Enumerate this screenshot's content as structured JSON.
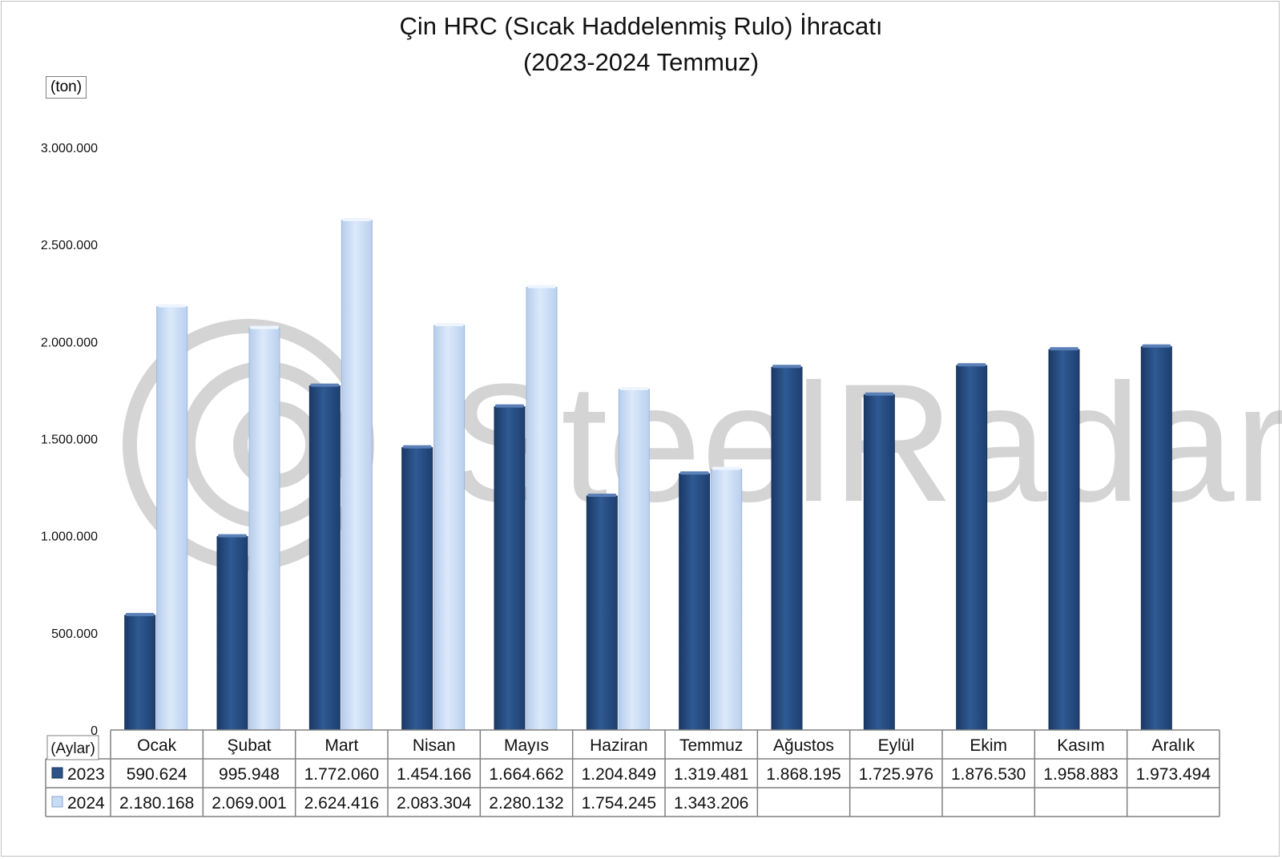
{
  "title_line1": "Çin HRC (Sıcak Haddelenmiş Rulo) İhracatı",
  "title_line2": "(2023-2024 Temmuz)",
  "unit_label": "(ton)",
  "watermark": "SteelRadar",
  "colors": {
    "series_2023": "#2d5288",
    "series_2024": "#c9dcf5"
  },
  "chart_data": {
    "type": "bar",
    "title": "Çin HRC (Sıcak Haddelenmiş Rulo) İhracatı (2023-2024 Temmuz)",
    "xlabel": "(Aylar)",
    "ylabel": "(ton)",
    "ylim": [
      0,
      3000000
    ],
    "yticks": [
      0,
      500000,
      1000000,
      1500000,
      2000000,
      2500000,
      3000000
    ],
    "ytick_labels": [
      "0",
      "500.000",
      "1.000.000",
      "1.500.000",
      "2.000.000",
      "2.500.000",
      "3.000.000"
    ],
    "grid": false,
    "legend_placement": "data-table",
    "categories": [
      "Ocak",
      "Şubat",
      "Mart",
      "Nisan",
      "Mayıs",
      "Haziran",
      "Temmuz",
      "Ağustos",
      "Eylül",
      "Ekim",
      "Kasım",
      "Aralık"
    ],
    "series": [
      {
        "name": "2023",
        "values": [
          590624,
          995948,
          1772060,
          1454166,
          1664662,
          1204849,
          1319481,
          1868195,
          1725976,
          1876530,
          1958883,
          1973494
        ],
        "labels": [
          "590.624",
          "995.948",
          "1.772.060",
          "1.454.166",
          "1.664.662",
          "1.204.849",
          "1.319.481",
          "1.868.195",
          "1.725.976",
          "1.876.530",
          "1.958.883",
          "1.973.494"
        ]
      },
      {
        "name": "2024",
        "values": [
          2180168,
          2069001,
          2624416,
          2083304,
          2280132,
          1754245,
          1343206,
          null,
          null,
          null,
          null,
          null
        ],
        "labels": [
          "2.180.168",
          "2.069.001",
          "2.624.416",
          "2.083.304",
          "2.280.132",
          "1.754.245",
          "1.343.206",
          "",
          "",
          "",
          "",
          ""
        ]
      }
    ]
  }
}
